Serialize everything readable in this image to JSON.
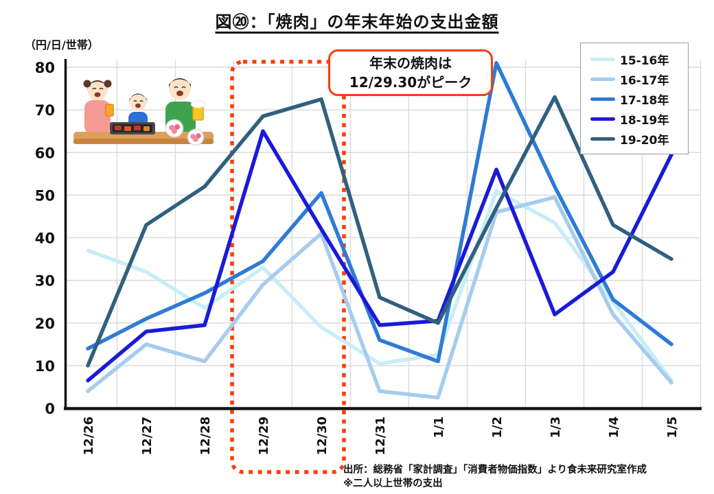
{
  "title": "図⑳：「焼肉」の年末年始の支出金額",
  "y_axis_unit": "（円/日/世帯）",
  "annotation": {
    "line1": "年末の焼肉は",
    "line2": "12/29.30がピーク"
  },
  "source": {
    "line1": "出所：総務省「家計調査」「消費者物価指数」より食未来研究室作成",
    "line2": "※二人以上世帯の支出"
  },
  "colors": {
    "accent_red": "#f93d0a",
    "grid": "#d9d9d9",
    "axis": "#141414",
    "legend_border": "#9a9a9a"
  },
  "chart_data": {
    "type": "line",
    "title": "図⑳：「焼肉」の年末年始の支出金額",
    "ylabel": "（円/日/世帯）",
    "categories": [
      "12/26",
      "12/27",
      "12/28",
      "12/29",
      "12/30",
      "12/31",
      "1/1",
      "1/2",
      "1/3",
      "1/4",
      "1/5"
    ],
    "series": [
      {
        "name": "15-16年",
        "color": "#c8edf6",
        "values": [
          37,
          32,
          23.5,
          33,
          19,
          10.5,
          12.5,
          51,
          43.5,
          25,
          6.5
        ]
      },
      {
        "name": "16-17年",
        "color": "#a6ccef",
        "values": [
          4,
          15,
          11,
          29,
          41,
          4,
          2.5,
          46,
          49.5,
          22,
          6
        ]
      },
      {
        "name": "17-18年",
        "color": "#2e7bd6",
        "values": [
          14,
          21,
          27,
          34.5,
          50.5,
          16,
          11,
          81,
          52,
          25.5,
          15
        ]
      },
      {
        "name": "18-19年",
        "color": "#1a1ad8",
        "values": [
          6.5,
          18,
          19.5,
          65,
          42,
          19.5,
          20.5,
          56,
          22,
          32,
          59.5
        ]
      },
      {
        "name": "19-20年",
        "color": "#30607f",
        "values": [
          10,
          43,
          52,
          68.5,
          72.5,
          26,
          20,
          47,
          73,
          43,
          35
        ]
      }
    ],
    "ylim": [
      0,
      80
    ],
    "yticks": [
      0,
      10,
      20,
      30,
      40,
      50,
      60,
      70,
      80
    ],
    "grid": true,
    "legend_position": "top-right",
    "highlight": {
      "from_category": "12/29",
      "to_category": "12/30",
      "style": "red-dotted-rounded-box"
    }
  }
}
